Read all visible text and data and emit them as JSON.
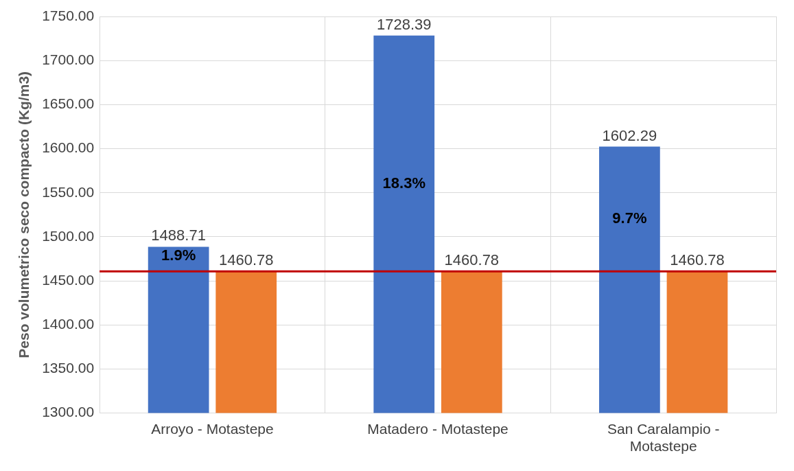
{
  "chart_data": {
    "type": "bar",
    "ylabel": "Peso volumetrico seco compacto (Kg/m3)",
    "categories": [
      "Arroyo - Motastepe",
      "Matadero - Motastepe",
      "San Caralampio - Motastepe"
    ],
    "series": [
      {
        "color": "#4472c4",
        "values": [
          1488.71,
          1728.39,
          1602.29
        ]
      },
      {
        "color": "#ed7d31",
        "values": [
          1460.78,
          1460.78,
          1460.78
        ]
      }
    ],
    "data_labels": true,
    "ylim": [
      1300,
      1750
    ],
    "yticks": [
      {
        "value": 1300,
        "label": "1300.00"
      },
      {
        "value": 1350,
        "label": "1350.00"
      },
      {
        "value": 1400,
        "label": "1400.00"
      },
      {
        "value": 1450,
        "label": "1450.00"
      },
      {
        "value": 1500,
        "label": "1500.00"
      },
      {
        "value": 1550,
        "label": "1550.00"
      },
      {
        "value": 1600,
        "label": "1600.00"
      },
      {
        "value": 1650,
        "label": "1650.00"
      },
      {
        "value": 1700,
        "label": "1700.00"
      },
      {
        "value": 1750,
        "label": "1750.00"
      }
    ],
    "ref_lines": [
      {
        "axis": "y",
        "value": 1460.78,
        "color": "#c00000"
      }
    ],
    "annotations": [
      {
        "text": "1.9%",
        "x": "Arroyo - Motastepe",
        "y": 1478
      },
      {
        "text": "18.3%",
        "x": "Matadero - Motastepe",
        "y": 1560
      },
      {
        "text": "9.7%",
        "x": "San Caralampio - Motastepe",
        "y": 1520
      }
    ],
    "grid": true,
    "legend": false
  }
}
